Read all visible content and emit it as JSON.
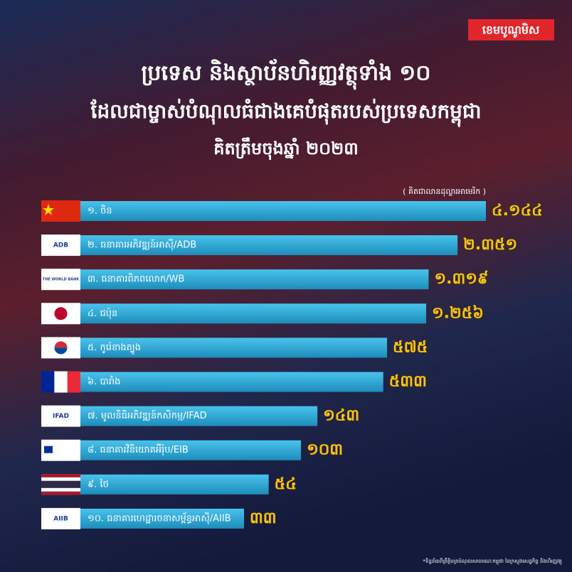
{
  "badge": "ខេមបូណូមិស",
  "chart_data": {
    "type": "bar",
    "orientation": "horizontal",
    "log_scale": true,
    "title": "ប្រទេស និងស្ថាប័នហិរញ្ញវត្ថុទាំង ១០",
    "subtitle": "ដែលជាម្ចាស់បំណុលធំជាងគេបំផុតរបស់ប្រទេសកម្ពុជា",
    "subtitle2": "គិតត្រឹមចុងឆ្នាំ ២០២៣",
    "unit_label": "( គិតជាលានដុល្លារអាមេរិក )",
    "categories": [
      "១. ចិន",
      "២. ធនាគារអភិវឌ្ឍន៍អាស៊ី/ADB",
      "៣. ធនាគារពិភពលោក/WB",
      "៤. ជប៉ុន",
      "៥. កូរ៉េខាងត្បូង",
      "៦. បារាំង",
      "៧. មូលនិធិអភិវឌ្ឍន៍កសិកម្ម/IFAD",
      "៨. ធនាគារវិនិយោគអឺរ៉ុប/EIB",
      "៩. ថៃ",
      "១០. ធនាគារហេដ្ឋារចនាសម្ព័ន្ធអាស៊ី/AIIB"
    ],
    "values": [
      4144,
      2351,
      1319,
      1256,
      575,
      533,
      143,
      103,
      54,
      33
    ],
    "value_labels": [
      "៤.១៤៤",
      "២.៣៥១",
      "១.៣១៩",
      "១.២៥៦",
      "៥៧៥",
      "៥៣៣",
      "១៤៣",
      "១០៣",
      "៥៤",
      "៣៣"
    ],
    "logo_texts": [
      null,
      "ADB",
      "THE WORLD BANK",
      null,
      null,
      null,
      "IFAD",
      null,
      null,
      "AIIB"
    ],
    "color": "#2aa6d3",
    "label_color": "#f6c31c",
    "source": "*ទិន្នន័យពីព្រឹត្តិបត្របំណុលសាធារណៈកម្ពុជា នៃក្រសួងសេដ្ឋកិច្ច និងហិរញ្ញវត្ថុ"
  }
}
